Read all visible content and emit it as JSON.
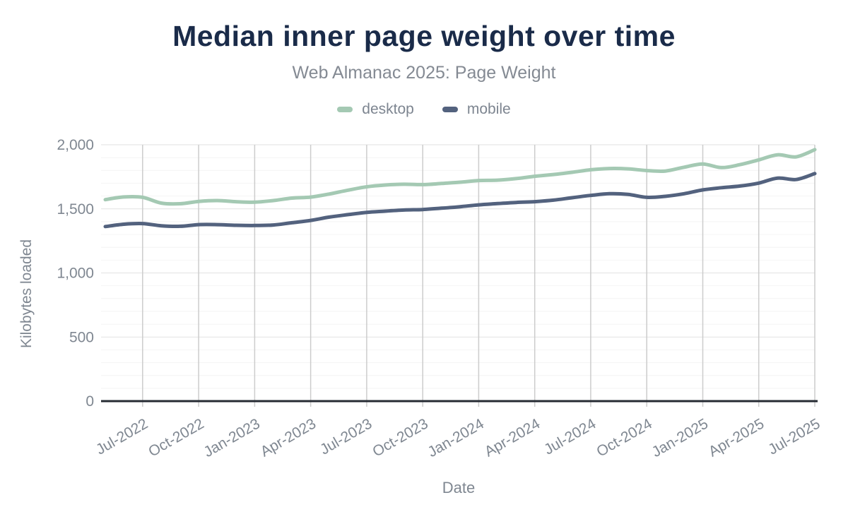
{
  "header": {
    "title": "Median inner page weight over time",
    "subtitle": "Web Almanac 2025: Page Weight"
  },
  "legend": {
    "items": [
      {
        "label": "desktop",
        "color": "#a4c9b3"
      },
      {
        "label": "mobile",
        "color": "#53627e"
      }
    ]
  },
  "axes": {
    "x_title": "Date",
    "y_title": "Kilobytes loaded",
    "y_ticks": [
      {
        "value": 0,
        "label": "0"
      },
      {
        "value": 500,
        "label": "500"
      },
      {
        "value": 1000,
        "label": "1,000"
      },
      {
        "value": 1500,
        "label": "1,500"
      },
      {
        "value": 2000,
        "label": "2,000"
      }
    ],
    "x_ticks": [
      "Jul-2022",
      "Oct-2022",
      "Jan-2023",
      "Apr-2023",
      "Jul-2023",
      "Oct-2023",
      "Jan-2024",
      "Apr-2024",
      "Jul-2024",
      "Oct-2024",
      "Jan-2025",
      "Apr-2025",
      "Jul-2025"
    ]
  },
  "chart_data": {
    "type": "line",
    "title": "Median inner page weight over time",
    "subtitle": "Web Almanac 2025: Page Weight",
    "xlabel": "Date",
    "ylabel": "Kilobytes loaded",
    "ylim": [
      0,
      2000
    ],
    "grid": true,
    "legend_position": "top",
    "categories": [
      "May-2022",
      "Jun-2022",
      "Jul-2022",
      "Aug-2022",
      "Sep-2022",
      "Oct-2022",
      "Nov-2022",
      "Dec-2022",
      "Jan-2023",
      "Feb-2023",
      "Mar-2023",
      "Apr-2023",
      "May-2023",
      "Jun-2023",
      "Jul-2023",
      "Aug-2023",
      "Sep-2023",
      "Oct-2023",
      "Nov-2023",
      "Dec-2023",
      "Jan-2024",
      "Feb-2024",
      "Mar-2024",
      "Apr-2024",
      "May-2024",
      "Jun-2024",
      "Jul-2024",
      "Aug-2024",
      "Sep-2024",
      "Oct-2024",
      "Nov-2024",
      "Dec-2024",
      "Jan-2025",
      "Feb-2025",
      "Mar-2025",
      "Apr-2025",
      "May-2025",
      "Jun-2025",
      "Jul-2025"
    ],
    "series": [
      {
        "name": "desktop",
        "color": "#a4c9b3",
        "values": [
          1572,
          1593,
          1590,
          1545,
          1540,
          1558,
          1565,
          1556,
          1552,
          1565,
          1584,
          1592,
          1616,
          1646,
          1672,
          1686,
          1692,
          1689,
          1698,
          1708,
          1721,
          1724,
          1736,
          1754,
          1768,
          1785,
          1805,
          1815,
          1812,
          1799,
          1795,
          1825,
          1850,
          1822,
          1845,
          1882,
          1922,
          1906,
          1962
        ]
      },
      {
        "name": "mobile",
        "color": "#53627e",
        "values": [
          1362,
          1380,
          1385,
          1368,
          1364,
          1377,
          1377,
          1372,
          1370,
          1374,
          1392,
          1410,
          1436,
          1455,
          1472,
          1482,
          1491,
          1495,
          1505,
          1517,
          1531,
          1541,
          1550,
          1556,
          1568,
          1587,
          1605,
          1618,
          1613,
          1590,
          1598,
          1618,
          1648,
          1665,
          1678,
          1701,
          1740,
          1729,
          1775
        ]
      }
    ]
  }
}
